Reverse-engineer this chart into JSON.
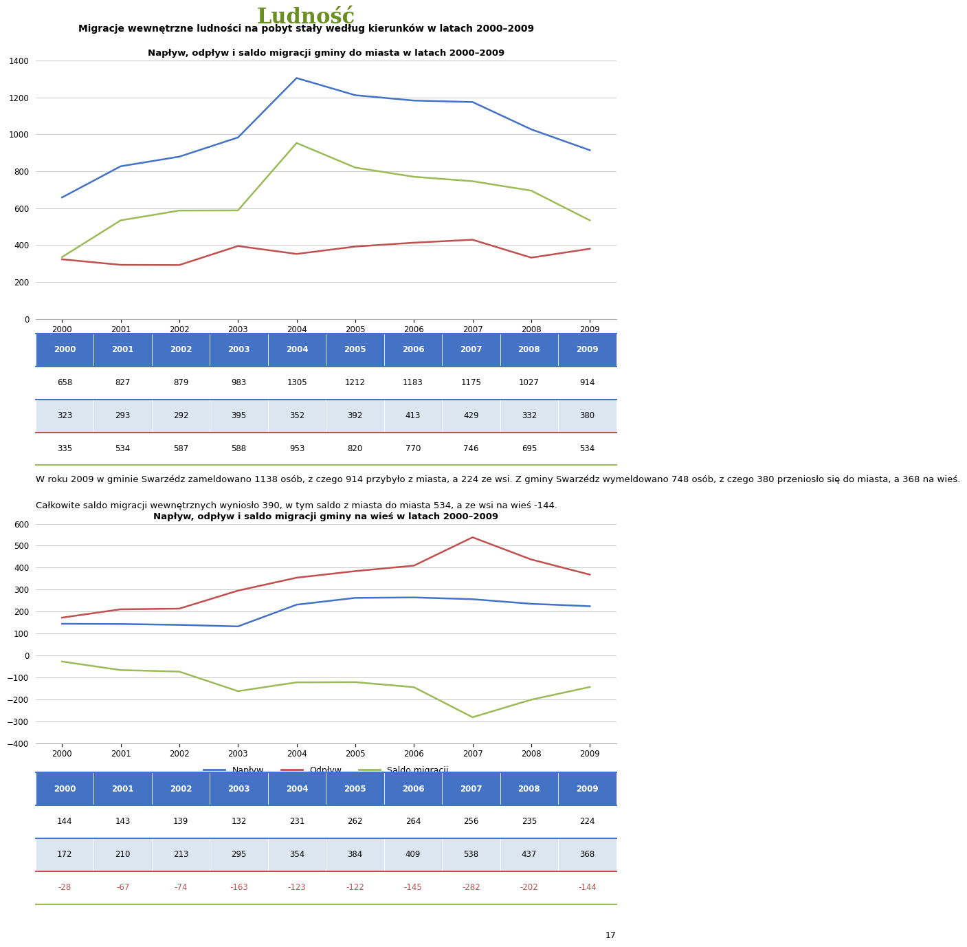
{
  "title_main": "Ludność",
  "title_main_color": "#6b8e23",
  "subtitle": "Migracje wewnętrzne ludności na pobyt stały według kierunków w latach 2000–2009",
  "chart1_title": "Napływ, odpływ i saldo migracji gminy do miasta w latach 2000–2009",
  "chart2_title": "Napływ, odpływ i saldo migracji gminy na wieś w latach 2000–2009",
  "years": [
    2000,
    2001,
    2002,
    2003,
    2004,
    2005,
    2006,
    2007,
    2008,
    2009
  ],
  "chart1_napływ": [
    658,
    827,
    879,
    983,
    1305,
    1212,
    1183,
    1175,
    1027,
    914
  ],
  "chart1_odpływ": [
    323,
    293,
    292,
    395,
    352,
    392,
    413,
    429,
    332,
    380
  ],
  "chart1_saldo": [
    335,
    534,
    587,
    588,
    953,
    820,
    770,
    746,
    695,
    534
  ],
  "chart2_napływ": [
    144,
    143,
    139,
    132,
    231,
    262,
    264,
    256,
    235,
    224
  ],
  "chart2_odpływ": [
    172,
    210,
    213,
    295,
    354,
    384,
    409,
    538,
    437,
    368
  ],
  "chart2_saldo": [
    -28,
    -67,
    -74,
    -163,
    -123,
    -122,
    -145,
    -282,
    -202,
    -144
  ],
  "color_napływ": "#4472c4",
  "color_odpływ": "#c0504d",
  "color_saldo": "#9bbb59",
  "legend_napływ": "Napływ",
  "legend_odpływ": "Odpływ",
  "legend_saldo": "Saldo migracji",
  "table1_header": [
    2000,
    2001,
    2002,
    2003,
    2004,
    2005,
    2006,
    2007,
    2008,
    2009
  ],
  "table1_row1": [
    658,
    827,
    879,
    983,
    1305,
    1212,
    1183,
    1175,
    1027,
    914
  ],
  "table1_row2": [
    323,
    293,
    292,
    395,
    352,
    392,
    413,
    429,
    332,
    380
  ],
  "table1_row3": [
    335,
    534,
    587,
    588,
    953,
    820,
    770,
    746,
    695,
    534
  ],
  "table2_header": [
    2000,
    2001,
    2002,
    2003,
    2004,
    2005,
    2006,
    2007,
    2008,
    2009
  ],
  "table2_row1": [
    144,
    143,
    139,
    132,
    231,
    262,
    264,
    256,
    235,
    224
  ],
  "table2_row2": [
    172,
    210,
    213,
    295,
    354,
    384,
    409,
    538,
    437,
    368
  ],
  "table2_row3": [
    -28,
    -67,
    -74,
    -163,
    -123,
    -122,
    -145,
    -282,
    -202,
    -144
  ],
  "table_header_bg": "#4472c4",
  "table_header_fg": "#ffffff",
  "table_row1_bg": "#ffffff",
  "table_row2_bg": "#dce6f1",
  "table_row3_bg": "#ffffff",
  "table_row3_fg": "#c0504d",
  "table_border_top": "#4472c4",
  "table_border_mid1": "#4472c4",
  "table_border_mid2": "#c0504d",
  "table_border_bot": "#9bbb59",
  "chart1_ylim": [
    0,
    1400
  ],
  "chart1_yticks": [
    0,
    200,
    400,
    600,
    800,
    1000,
    1200,
    1400
  ],
  "chart2_ylim": [
    -400,
    600
  ],
  "chart2_yticks": [
    -400,
    -300,
    -200,
    -100,
    0,
    100,
    200,
    300,
    400,
    500,
    600
  ],
  "text_line1": "W roku 2009 w gminie Swarzédz zameldowano 1138 osób, z czego 914 przybyło z miasta, a 224 ze wsi. Z gminy Swarzédz wymeldowano 748 osób, z czego 380 przeniosło się do miasta, a 368 na wieś.",
  "text_line2": "Całkowite saldo migracji wewnętrznych wyniosło 390, w tym saldo z miasta do miasta 534, a ze wsi na wieś -144.",
  "page_number": "17"
}
